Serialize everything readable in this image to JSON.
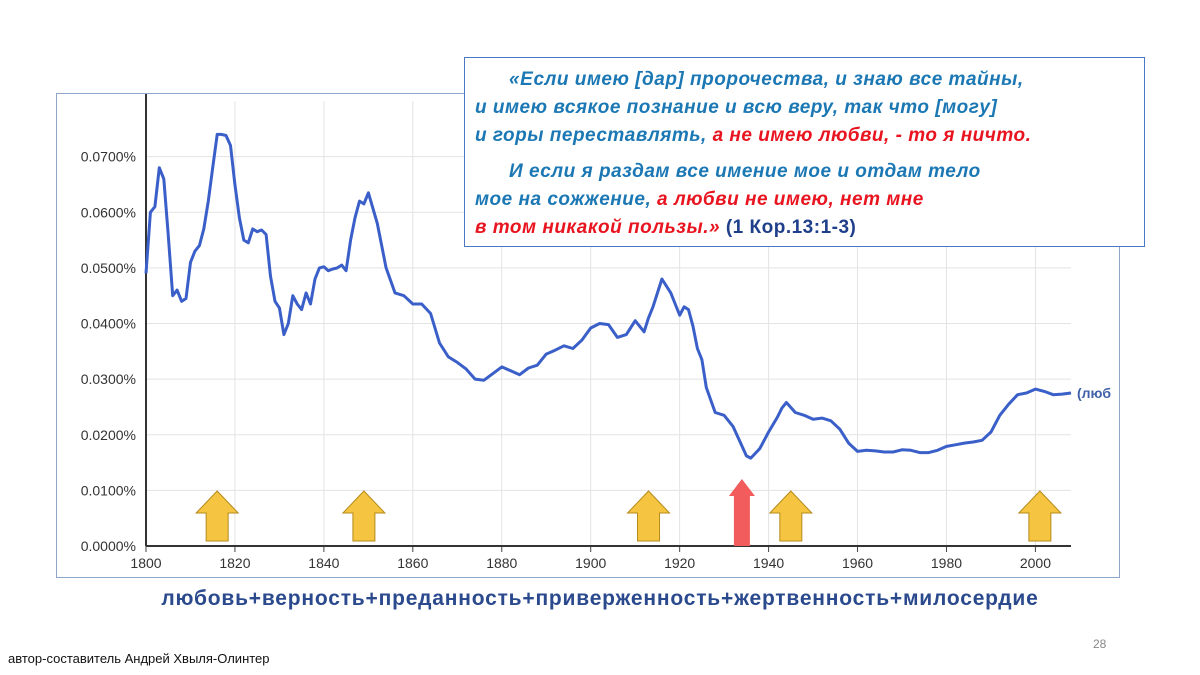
{
  "chart_data": {
    "type": "line",
    "series": [
      {
        "name": "(люб",
        "x": [
          1800,
          1801,
          1802,
          1803,
          1804,
          1805,
          1806,
          1807,
          1808,
          1809,
          1810,
          1811,
          1812,
          1813,
          1814,
          1815,
          1816,
          1817,
          1818,
          1819,
          1820,
          1821,
          1822,
          1823,
          1824,
          1825,
          1826,
          1827,
          1828,
          1829,
          1830,
          1831,
          1832,
          1833,
          1834,
          1835,
          1836,
          1837,
          1838,
          1839,
          1840,
          1841,
          1842,
          1843,
          1844,
          1845,
          1846,
          1847,
          1848,
          1849,
          1850,
          1852,
          1854,
          1856,
          1858,
          1860,
          1862,
          1864,
          1866,
          1868,
          1870,
          1872,
          1874,
          1876,
          1878,
          1880,
          1882,
          1884,
          1886,
          1888,
          1890,
          1892,
          1894,
          1896,
          1898,
          1900,
          1902,
          1904,
          1906,
          1908,
          1910,
          1912,
          1913,
          1914,
          1916,
          1918,
          1919,
          1920,
          1921,
          1922,
          1923,
          1924,
          1925,
          1926,
          1928,
          1930,
          1932,
          1934,
          1935,
          1936,
          1938,
          1940,
          1942,
          1943,
          1944,
          1946,
          1948,
          1950,
          1952,
          1954,
          1956,
          1958,
          1960,
          1962,
          1964,
          1966,
          1968,
          1970,
          1972,
          1974,
          1976,
          1978,
          1980,
          1982,
          1984,
          1986,
          1988,
          1990,
          1992,
          1994,
          1996,
          1998,
          2000,
          2002,
          2004,
          2006,
          2008
        ],
        "values": [
          0.049,
          0.06,
          0.061,
          0.068,
          0.066,
          0.056,
          0.045,
          0.046,
          0.044,
          0.0445,
          0.051,
          0.053,
          0.054,
          0.057,
          0.062,
          0.068,
          0.074,
          0.074,
          0.0738,
          0.072,
          0.065,
          0.059,
          0.055,
          0.0545,
          0.057,
          0.0565,
          0.0568,
          0.056,
          0.0485,
          0.044,
          0.0428,
          0.038,
          0.04,
          0.045,
          0.0435,
          0.0425,
          0.0455,
          0.0435,
          0.048,
          0.05,
          0.0502,
          0.0495,
          0.0498,
          0.05,
          0.0505,
          0.0495,
          0.055,
          0.059,
          0.062,
          0.0615,
          0.0635,
          0.058,
          0.05,
          0.0455,
          0.045,
          0.0435,
          0.0435,
          0.0418,
          0.0365,
          0.034,
          0.033,
          0.0318,
          0.03,
          0.0298,
          0.031,
          0.0322,
          0.0315,
          0.0308,
          0.032,
          0.0325,
          0.0345,
          0.0352,
          0.036,
          0.0355,
          0.037,
          0.0392,
          0.04,
          0.0398,
          0.0375,
          0.038,
          0.0405,
          0.0385,
          0.041,
          0.043,
          0.048,
          0.0455,
          0.0435,
          0.0415,
          0.043,
          0.0425,
          0.0395,
          0.0355,
          0.0335,
          0.0285,
          0.024,
          0.0235,
          0.0215,
          0.018,
          0.0162,
          0.0158,
          0.0175,
          0.0205,
          0.0232,
          0.0248,
          0.0258,
          0.024,
          0.0235,
          0.0228,
          0.023,
          0.0225,
          0.021,
          0.0185,
          0.017,
          0.0172,
          0.0171,
          0.0169,
          0.0169,
          0.0173,
          0.0172,
          0.0168,
          0.0168,
          0.0172,
          0.0179,
          0.0182,
          0.0185,
          0.0187,
          0.019,
          0.0205,
          0.0235,
          0.0255,
          0.0272,
          0.0275,
          0.0282,
          0.0278,
          0.0272,
          0.0273,
          0.0275
        ]
      }
    ],
    "xlim": [
      1800,
      2008
    ],
    "ylim": [
      0,
      0.08
    ],
    "x_ticks": [
      "1800",
      "1820",
      "1840",
      "1860",
      "1880",
      "1900",
      "1920",
      "1940",
      "1960",
      "1980",
      "2000"
    ],
    "y_ticks": [
      "0.0000%",
      "0.0100%",
      "0.0200%",
      "0.0300%",
      "0.0400%",
      "0.0500%",
      "0.0600%",
      "0.0700%"
    ],
    "grid": true,
    "line_color": "#3a5fc8",
    "annotations": [
      {
        "type": "arrow-up",
        "x": 1816,
        "color": "#f5c542"
      },
      {
        "type": "arrow-up",
        "x": 1849,
        "color": "#f5c542"
      },
      {
        "type": "arrow-up",
        "x": 1913,
        "color": "#f5c542"
      },
      {
        "type": "arrow-up",
        "x": 1934,
        "color": "#f25c5c"
      },
      {
        "type": "arrow-up",
        "x": 1945,
        "color": "#f5c542"
      },
      {
        "type": "arrow-up",
        "x": 2001,
        "color": "#f5c542"
      }
    ]
  },
  "quote": {
    "line1": "«Если имею [дар]  пророчества,  и знаю все  тайны,",
    "line2": "и имею  всякое познание  и всю веру,  так что [могу]",
    "line3_blue": "и горы переставлять,",
    "line3_red": "  а не имею любви, - то  я ничто.",
    "line4": "И  если  я  раздам  все  имение  мое  и  отдам  тело",
    "line5_blue": "мое   на   сожжение,",
    "line5_red": " а  любви  не  имею,  нет  мне",
    "line6_red": "в   том   никакой   пользы.»",
    "line6_ref": "  (1 Кор.13:1-3)"
  },
  "footer_formula": "любовь+верность+преданность+приверженность+жертвенность+милосердие",
  "page_number": "28",
  "author": "автор-составитель Андрей Хвыля-Олинтер"
}
